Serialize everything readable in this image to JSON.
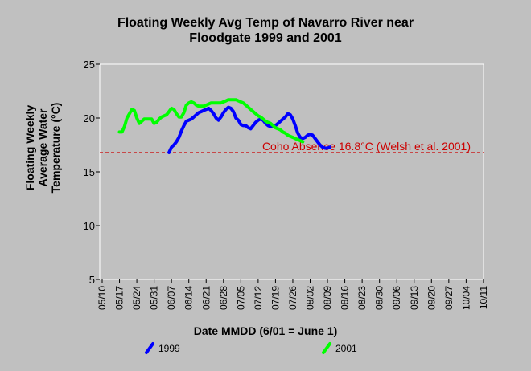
{
  "chart_data": {
    "type": "line",
    "title_lines": [
      "Floating Weekly Avg Temp of Navarro River near",
      "Floodgate 1999 and 2001"
    ],
    "xlabel": "Date MMDD (6/01 = June 1)",
    "ylabel_lines": [
      "Floating Weekly",
      "Average Water",
      "Temperature (°C)"
    ],
    "ylim": [
      5,
      25
    ],
    "yticks": [
      "5",
      "10",
      "15",
      "20",
      "25"
    ],
    "categories": [
      "05/10",
      "05/17",
      "05/24",
      "05/31",
      "06/07",
      "06/14",
      "06/21",
      "06/28",
      "07/05",
      "07/12",
      "07/19",
      "07/26",
      "08/02",
      "08/09",
      "08/16",
      "08/23",
      "08/30",
      "09/06",
      "09/13",
      "09/20",
      "09/27",
      "10/04",
      "10/11"
    ],
    "grid": false,
    "series": [
      {
        "name": "1999",
        "color": "#0000ff",
        "points": [
          [
            27,
            16.8
          ],
          [
            28,
            17.3
          ],
          [
            29,
            17.5
          ],
          [
            30,
            17.8
          ],
          [
            31,
            18.2
          ],
          [
            32,
            18.8
          ],
          [
            33,
            19.3
          ],
          [
            34,
            19.7
          ],
          [
            35,
            19.8
          ],
          [
            36,
            19.9
          ],
          [
            37,
            20.1
          ],
          [
            38,
            20.3
          ],
          [
            39,
            20.5
          ],
          [
            40,
            20.6
          ],
          [
            41,
            20.7
          ],
          [
            42,
            20.8
          ],
          [
            43,
            20.9
          ],
          [
            44,
            20.7
          ],
          [
            45,
            20.4
          ],
          [
            46,
            20.0
          ],
          [
            47,
            19.8
          ],
          [
            48,
            20.1
          ],
          [
            49,
            20.5
          ],
          [
            50,
            20.8
          ],
          [
            51,
            21.0
          ],
          [
            52,
            20.9
          ],
          [
            53,
            20.6
          ],
          [
            54,
            20.0
          ],
          [
            55,
            19.8
          ],
          [
            56,
            19.4
          ],
          [
            57,
            19.3
          ],
          [
            58,
            19.3
          ],
          [
            59,
            19.1
          ],
          [
            60,
            19.0
          ],
          [
            61,
            19.3
          ],
          [
            62,
            19.6
          ],
          [
            63,
            19.8
          ],
          [
            64,
            19.9
          ],
          [
            65,
            19.8
          ],
          [
            66,
            19.5
          ],
          [
            67,
            19.3
          ],
          [
            68,
            19.2
          ],
          [
            69,
            19.2
          ],
          [
            70,
            19.3
          ],
          [
            71,
            19.5
          ],
          [
            72,
            19.7
          ],
          [
            73,
            19.9
          ],
          [
            74,
            20.1
          ],
          [
            75,
            20.4
          ],
          [
            76,
            20.3
          ],
          [
            77,
            19.9
          ],
          [
            78,
            19.3
          ],
          [
            79,
            18.6
          ],
          [
            80,
            18.2
          ],
          [
            81,
            18.1
          ],
          [
            82,
            18.2
          ],
          [
            83,
            18.4
          ],
          [
            84,
            18.5
          ],
          [
            85,
            18.4
          ],
          [
            86,
            18.1
          ],
          [
            87,
            17.8
          ],
          [
            88,
            17.5
          ],
          [
            89,
            17.3
          ],
          [
            90,
            17.2
          ],
          [
            91,
            17.2
          ],
          [
            92,
            17.3
          ]
        ]
      },
      {
        "name": "2001",
        "color": "#00ff00",
        "points": [
          [
            7,
            18.7
          ],
          [
            8,
            18.7
          ],
          [
            9,
            19.2
          ],
          [
            10,
            20.0
          ],
          [
            11,
            20.4
          ],
          [
            12,
            20.8
          ],
          [
            13,
            20.7
          ],
          [
            14,
            20.0
          ],
          [
            15,
            19.5
          ],
          [
            16,
            19.7
          ],
          [
            17,
            19.9
          ],
          [
            18,
            19.9
          ],
          [
            19,
            19.9
          ],
          [
            20,
            19.9
          ],
          [
            21,
            19.5
          ],
          [
            22,
            19.6
          ],
          [
            23,
            19.9
          ],
          [
            24,
            20.1
          ],
          [
            25,
            20.2
          ],
          [
            26,
            20.3
          ],
          [
            27,
            20.6
          ],
          [
            28,
            20.9
          ],
          [
            29,
            20.8
          ],
          [
            30,
            20.4
          ],
          [
            31,
            20.1
          ],
          [
            32,
            20.1
          ],
          [
            33,
            20.5
          ],
          [
            34,
            21.2
          ],
          [
            35,
            21.4
          ],
          [
            36,
            21.5
          ],
          [
            37,
            21.4
          ],
          [
            38,
            21.2
          ],
          [
            39,
            21.1
          ],
          [
            40,
            21.1
          ],
          [
            41,
            21.1
          ],
          [
            42,
            21.2
          ],
          [
            43,
            21.3
          ],
          [
            44,
            21.4
          ],
          [
            45,
            21.4
          ],
          [
            46,
            21.4
          ],
          [
            47,
            21.4
          ],
          [
            48,
            21.4
          ],
          [
            49,
            21.5
          ],
          [
            50,
            21.6
          ],
          [
            51,
            21.7
          ],
          [
            52,
            21.7
          ],
          [
            53,
            21.7
          ],
          [
            54,
            21.7
          ],
          [
            55,
            21.6
          ],
          [
            56,
            21.5
          ],
          [
            57,
            21.4
          ],
          [
            58,
            21.2
          ],
          [
            59,
            21.0
          ],
          [
            60,
            20.8
          ],
          [
            61,
            20.6
          ],
          [
            62,
            20.4
          ],
          [
            63,
            20.2
          ],
          [
            64,
            20.1
          ],
          [
            65,
            19.9
          ],
          [
            66,
            19.7
          ],
          [
            67,
            19.6
          ],
          [
            68,
            19.5
          ],
          [
            69,
            19.3
          ],
          [
            70,
            19.1
          ],
          [
            71,
            19.0
          ],
          [
            72,
            18.9
          ],
          [
            73,
            18.7
          ],
          [
            74,
            18.6
          ],
          [
            75,
            18.4
          ],
          [
            76,
            18.3
          ],
          [
            77,
            18.2
          ],
          [
            78,
            18.1
          ],
          [
            79,
            18.0
          ],
          [
            80,
            17.9
          ],
          [
            81,
            17.8
          ]
        ]
      }
    ],
    "x_units": "days after 05/10",
    "threshold": {
      "value": 16.8,
      "label": "Coho Absence 16.8°C (Welsh et al. 2001)",
      "color": "#cc0000",
      "style": "dashed"
    },
    "legend": {
      "position": "bottom",
      "entries": [
        "1999",
        "2001"
      ]
    }
  }
}
